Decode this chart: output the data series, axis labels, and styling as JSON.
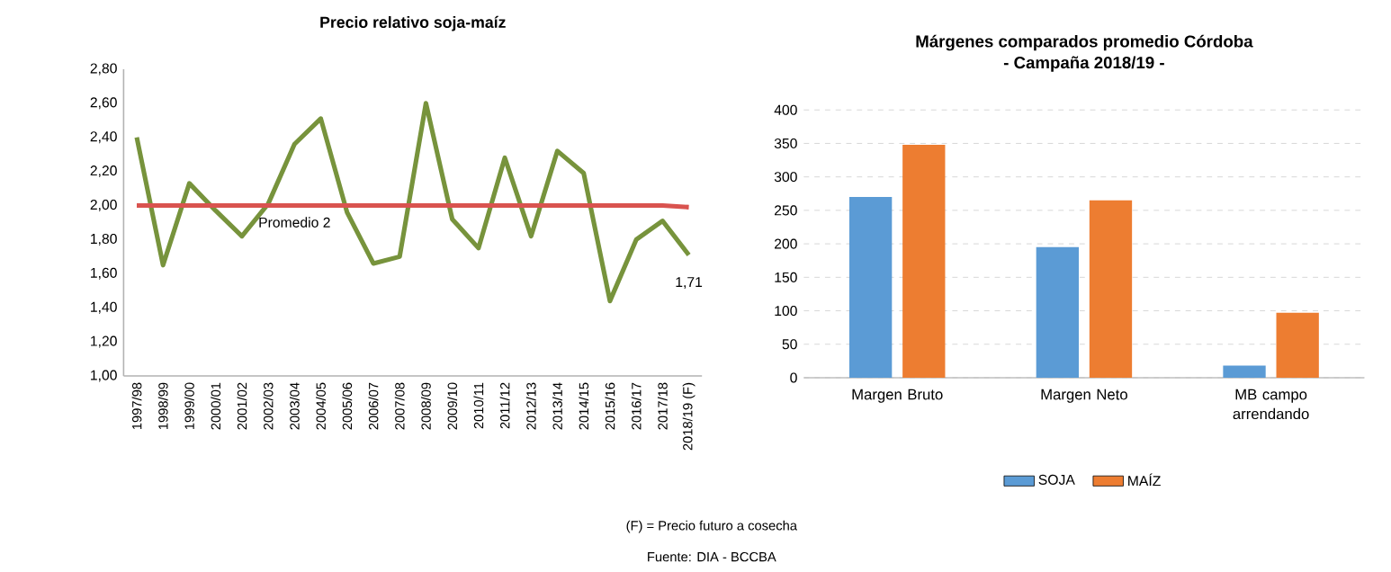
{
  "chart_data": [
    {
      "type": "line",
      "title": "Precio relativo soja-maíz",
      "categories": [
        "1997/98",
        "1998/99",
        "1999/00",
        "2000/01",
        "2001/02",
        "2002/03",
        "2003/04",
        "2004/05",
        "2005/06",
        "2006/07",
        "2007/08",
        "2008/09",
        "2009/10",
        "2010/11",
        "2011/12",
        "2012/13",
        "2013/14",
        "2014/15",
        "2015/16",
        "2016/17",
        "2017/18",
        "2018/19 (F)"
      ],
      "series": [
        {
          "color": "#77933c",
          "values": [
            2.4,
            1.65,
            2.13,
            1.97,
            1.82,
            2.01,
            2.36,
            2.51,
            1.96,
            1.66,
            1.7,
            2.6,
            1.92,
            1.75,
            2.28,
            1.82,
            2.32,
            2.19,
            1.44,
            1.8,
            1.91,
            1.71
          ],
          "value_labels": [
            null,
            null,
            null,
            null,
            null,
            null,
            null,
            null,
            null,
            null,
            null,
            null,
            null,
            null,
            null,
            null,
            null,
            null,
            null,
            null,
            null,
            "1,71"
          ]
        },
        {
          "color": "#d9534f",
          "values": [
            2,
            2,
            2,
            2,
            2,
            2,
            2,
            2,
            2,
            2,
            2,
            2,
            2,
            2,
            2,
            2,
            2,
            2,
            2,
            2,
            2,
            1.99
          ]
        }
      ],
      "ylim": [
        1.0,
        2.8
      ],
      "yticks": [
        {
          "value": 1.0,
          "label": "1,00"
        },
        {
          "value": 1.2,
          "label": "1,20"
        },
        {
          "value": 1.4,
          "label": "1,40"
        },
        {
          "value": 1.6,
          "label": "1,60"
        },
        {
          "value": 1.8,
          "label": "1,80"
        },
        {
          "value": 2.0,
          "label": "2,00"
        },
        {
          "value": 2.2,
          "label": "2,20"
        },
        {
          "value": 2.4,
          "label": "2,40"
        },
        {
          "value": 2.6,
          "label": "2,60"
        },
        {
          "value": 2.8,
          "label": "2,80"
        }
      ],
      "annotations": [
        {
          "text": "Promedio 2",
          "x": "2003/04",
          "y": 2
        },
        "(F) = Precio futuro a cosecha",
        "Fuente: DIA - BCCBA"
      ]
    },
    {
      "type": "bar",
      "title": "Márgenes comparados promedio Córdoba",
      "subtitle": "- Campaña 2018/19 -",
      "categories": [
        "Margen Bruto",
        "Margen Neto",
        "MB campo arrendando"
      ],
      "series": [
        {
          "name": "SOJA",
          "color": "#5b9bd5",
          "values": [
            270,
            195,
            18
          ]
        },
        {
          "name": "MAÍZ",
          "color": "#ed7d31",
          "values": [
            348,
            265,
            97
          ]
        }
      ],
      "ylim": [
        0,
        400
      ],
      "yticks": [
        0,
        50,
        100,
        150,
        200,
        250,
        300,
        350,
        400
      ],
      "grid": "y",
      "legend": "bottom"
    }
  ]
}
